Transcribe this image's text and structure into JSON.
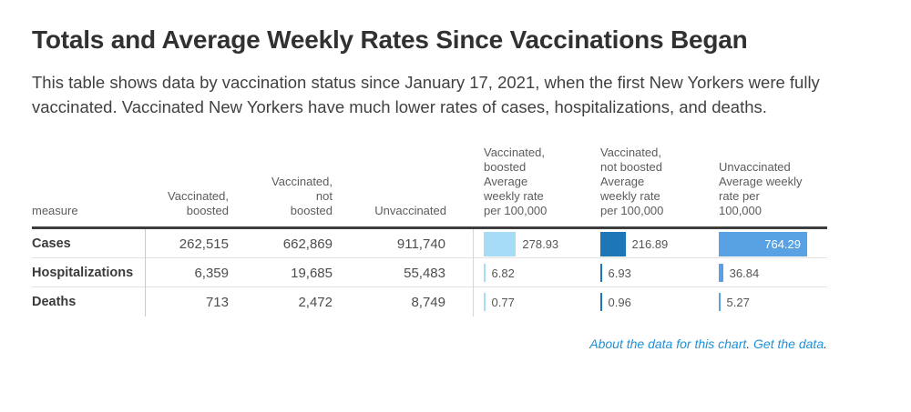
{
  "header": {
    "title": "Totals and Average Weekly Rates Since Vaccinations Began",
    "description": "This table shows data by vaccination status since January 17, 2021, when the first New Yorkers were fully vaccinated. Vaccinated New Yorkers have much lower rates of cases, hospitalizations, and deaths."
  },
  "table": {
    "column_headers": {
      "measure": "measure",
      "vaccinated_boosted": "Vaccinated,\nboosted",
      "vaccinated_not_boosted": "Vaccinated,\nnot\nboosted",
      "unvaccinated": "Unvaccinated",
      "rate_vaccinated_boosted": "Vaccinated,\nboosted\nAverage\nweekly rate\nper 100,000",
      "rate_vaccinated_not_boosted": "Vaccinated,\nnot boosted\nAverage\nweekly rate\nper 100,000",
      "rate_unvaccinated": "Unvaccinated\nAverage weekly\nrate per\n100,000"
    },
    "rows": [
      {
        "measure": "Cases",
        "vaccinated_boosted": "262,515",
        "vaccinated_not_boosted": "662,869",
        "unvaccinated": "911,740",
        "rate_vaccinated_boosted": "278.93",
        "rate_vaccinated_not_boosted": "216.89",
        "rate_unvaccinated": "764.29"
      },
      {
        "measure": "Hospitalizations",
        "vaccinated_boosted": "6,359",
        "vaccinated_not_boosted": "19,685",
        "unvaccinated": "55,483",
        "rate_vaccinated_boosted": "6.82",
        "rate_vaccinated_not_boosted": "6.93",
        "rate_unvaccinated": "36.84"
      },
      {
        "measure": "Deaths",
        "vaccinated_boosted": "713",
        "vaccinated_not_boosted": "2,472",
        "unvaccinated": "8,749",
        "rate_vaccinated_boosted": "0.77",
        "rate_vaccinated_not_boosted": "0.96",
        "rate_unvaccinated": "5.27"
      }
    ]
  },
  "chart_data": {
    "type": "table",
    "title": "Totals and Average Weekly Rates Since Vaccinations Began",
    "columns": [
      "measure",
      "Vaccinated, boosted",
      "Vaccinated, not boosted",
      "Unvaccinated",
      "Vaccinated, boosted Average weekly rate per 100,000",
      "Vaccinated, not boosted Average weekly rate per 100,000",
      "Unvaccinated Average weekly rate per 100,000"
    ],
    "rows": [
      [
        "Cases",
        262515,
        662869,
        911740,
        278.93,
        216.89,
        764.29
      ],
      [
        "Hospitalizations",
        6359,
        19685,
        55483,
        6.82,
        6.93,
        36.84
      ],
      [
        "Deaths",
        713,
        2472,
        8749,
        0.77,
        0.96,
        5.27
      ]
    ],
    "bar_columns": {
      "names": [
        "Vaccinated, boosted Average weekly rate per 100,000",
        "Vaccinated, not boosted Average weekly rate per 100,000",
        "Unvaccinated Average weekly rate per 100,000"
      ],
      "scale_max": 764.29,
      "colors": [
        "#a6dcf5",
        "#1d76b5",
        "#58a1e2"
      ],
      "value_label_inside_threshold": 60
    }
  },
  "footer": {
    "about_link": "About the data for this chart",
    "get_link": "Get the data",
    "period": "."
  },
  "colors": {
    "link": "#1e90d6",
    "header_rule": "#3d3d3d",
    "row_rule": "#e2e2e2",
    "bar_light_blue": "#a6dcf5",
    "bar_dark_blue": "#1d76b5",
    "bar_medium_blue": "#58a1e2"
  }
}
